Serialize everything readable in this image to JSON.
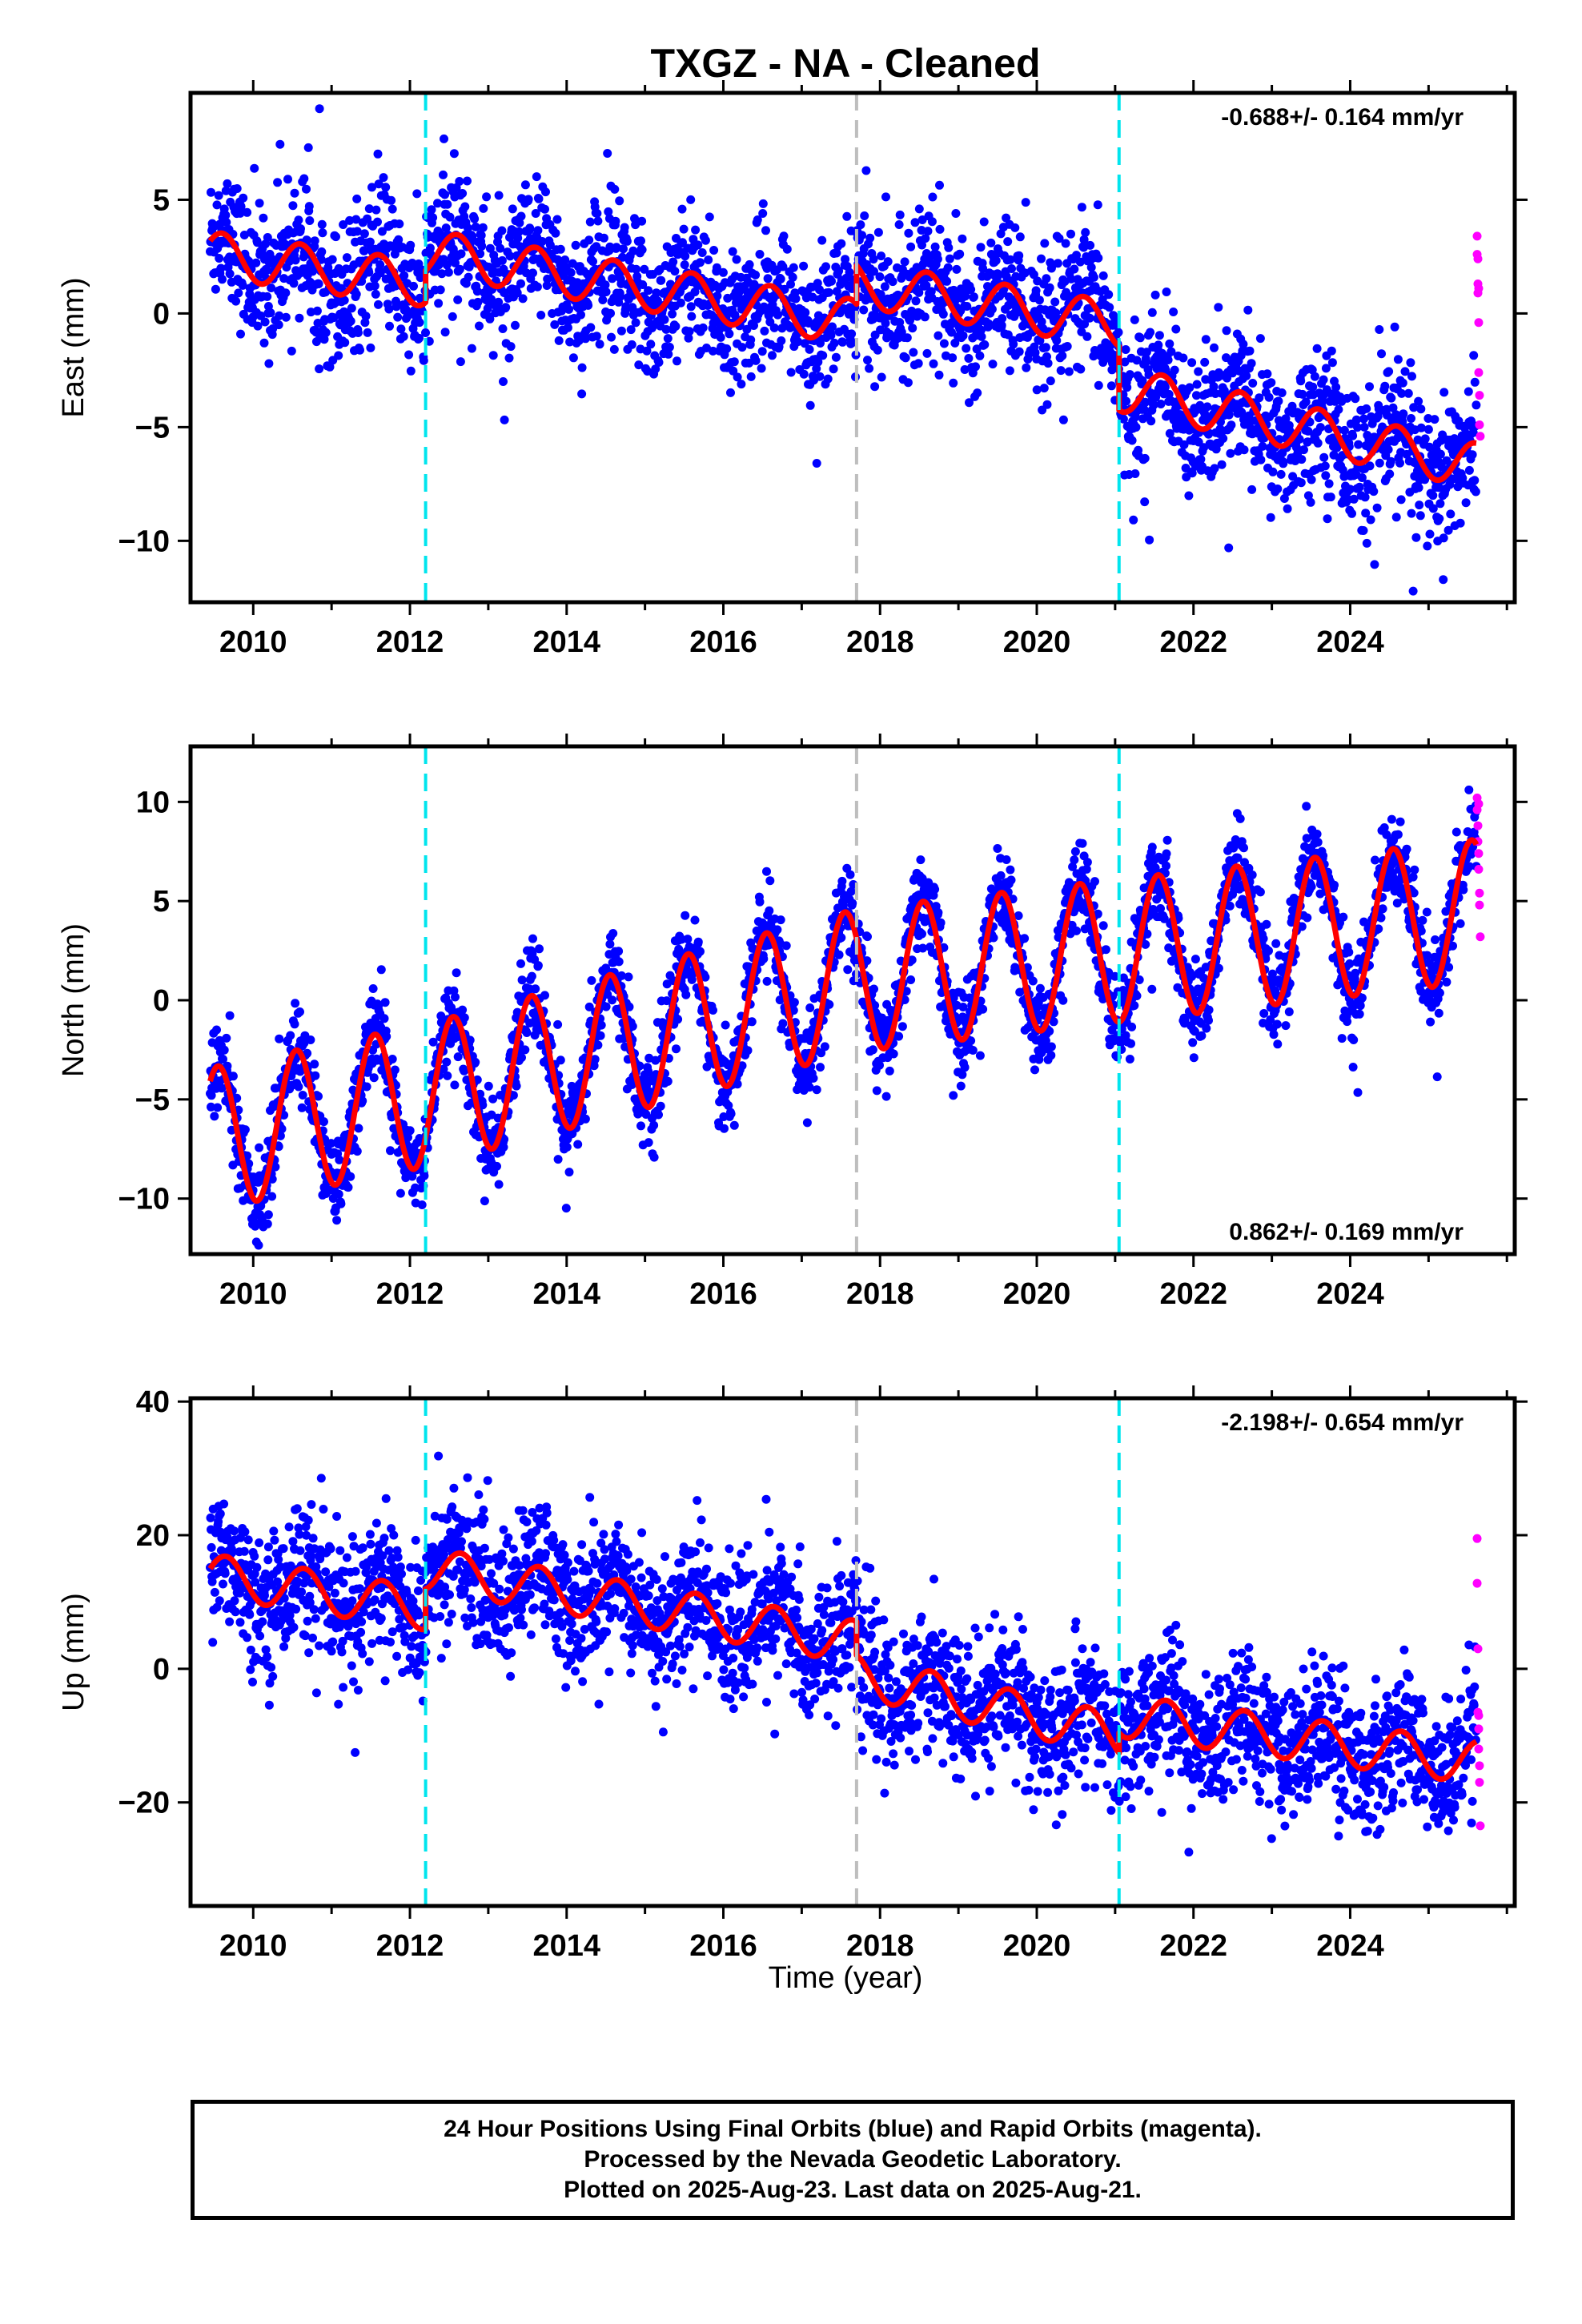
{
  "title": "TXGZ  - NA - Cleaned",
  "xlabel": "Time (year)",
  "footer": {
    "line1": "24 Hour Positions Using Final Orbits (blue) and Rapid Orbits (magenta).",
    "line2": "Processed by the Nevada Geodetic Laboratory.",
    "line3": "Plotted on 2025-Aug-23. Last data on 2025-Aug-21."
  },
  "colors": {
    "final_orbits": "#0000ff",
    "rapid_orbits": "#ff00ff",
    "model": "#ff0000",
    "equipment_change": "#00e5ee",
    "other_event": "#bebebe"
  },
  "chart_data": [
    {
      "type": "scatter",
      "ylabel": "East (mm)",
      "velocity": "-0.688+/- 0.164 mm/yr",
      "xlim": [
        2009.2,
        2026.1
      ],
      "ylim": [
        -12.7,
        9.7
      ],
      "xticks": [
        2010,
        2012,
        2014,
        2016,
        2018,
        2020,
        2022,
        2024
      ],
      "yticks": [
        5,
        0,
        -5,
        -10
      ],
      "vlines": [
        {
          "x": 2012.2,
          "type": "equipment_change"
        },
        {
          "x": 2017.7,
          "type": "other_event"
        },
        {
          "x": 2021.05,
          "type": "equipment_change"
        }
      ],
      "model": {
        "trend": [
          [
            2009.45,
            2.6
          ],
          [
            2012.2,
            1.3
          ],
          [
            2012.2,
            2.7
          ],
          [
            2017.7,
            -0.4
          ],
          [
            2017.7,
            1.3
          ],
          [
            2021.05,
            -0.5
          ],
          [
            2021.05,
            -3.3
          ],
          [
            2025.6,
            -6.7
          ]
        ],
        "seasonal_amplitude": 1.0,
        "peak_phase": 0.6
      },
      "scatter_sigma": 1.5,
      "rapid_points": [
        [
          2025.62,
          3.4
        ],
        [
          2025.62,
          2.6
        ],
        [
          2025.63,
          1.3
        ],
        [
          2025.63,
          0.9
        ],
        [
          2025.64,
          -0.4
        ],
        [
          2025.64,
          -2.6
        ],
        [
          2025.65,
          -3.6
        ],
        [
          2025.65,
          -4.9
        ],
        [
          2025.66,
          -5.4
        ],
        [
          2025.63,
          2.4
        ],
        [
          2025.64,
          1.1
        ]
      ]
    },
    {
      "type": "scatter",
      "ylabel": "North (mm)",
      "velocity": "0.862+/- 0.169 mm/yr",
      "xlim": [
        2009.2,
        2026.1
      ],
      "ylim": [
        -12.8,
        12.8
      ],
      "xticks": [
        2010,
        2012,
        2014,
        2016,
        2018,
        2020,
        2022,
        2024
      ],
      "yticks": [
        10,
        5,
        0,
        -5,
        -10
      ],
      "vlines": [
        {
          "x": 2012.2,
          "type": "equipment_change"
        },
        {
          "x": 2017.7,
          "type": "other_event"
        },
        {
          "x": 2021.05,
          "type": "equipment_change"
        }
      ],
      "model": {
        "trend": [
          [
            2009.45,
            -7.0
          ],
          [
            2012.2,
            -4.8
          ],
          [
            2017.7,
            1.0
          ],
          [
            2021.05,
            2.5
          ],
          [
            2025.6,
            4.5
          ]
        ],
        "seasonal_amplitude": 3.6,
        "peak_phase": 0.55
      },
      "scatter_sigma": 1.1,
      "rapid_points": [
        [
          2025.62,
          10.2
        ],
        [
          2025.62,
          9.6
        ],
        [
          2025.63,
          8.8
        ],
        [
          2025.63,
          8.0
        ],
        [
          2025.64,
          7.4
        ],
        [
          2025.64,
          6.6
        ],
        [
          2025.65,
          5.4
        ],
        [
          2025.65,
          4.8
        ],
        [
          2025.66,
          3.2
        ],
        [
          2025.64,
          9.9
        ]
      ]
    },
    {
      "type": "scatter",
      "ylabel": "Up (mm)",
      "velocity": "-2.198+/- 0.654 mm/yr",
      "xlim": [
        2009.2,
        2026.1
      ],
      "ylim": [
        -35.5,
        40.5
      ],
      "xticks": [
        2010,
        2012,
        2014,
        2016,
        2018,
        2020,
        2022,
        2024
      ],
      "yticks": [
        40,
        20,
        0,
        -20
      ],
      "vlines": [
        {
          "x": 2012.2,
          "type": "equipment_change"
        },
        {
          "x": 2017.7,
          "type": "other_event"
        },
        {
          "x": 2021.05,
          "type": "equipment_change"
        }
      ],
      "model": {
        "trend": [
          [
            2009.45,
            14.0
          ],
          [
            2012.2,
            9.0
          ],
          [
            2012.2,
            15.0
          ],
          [
            2017.7,
            4.0
          ],
          [
            2017.7,
            -1.0
          ],
          [
            2021.05,
            -10.0
          ],
          [
            2021.05,
            -7.0
          ],
          [
            2025.6,
            -14.0
          ]
        ],
        "seasonal_amplitude": 3.2,
        "peak_phase": 0.65
      },
      "scatter_sigma": 5.0,
      "rapid_points": [
        [
          2025.62,
          19.5
        ],
        [
          2025.62,
          12.8
        ],
        [
          2025.63,
          3.0
        ],
        [
          2025.63,
          -6.5
        ],
        [
          2025.64,
          -7.0
        ],
        [
          2025.64,
          -12.0
        ],
        [
          2025.65,
          -14.5
        ],
        [
          2025.65,
          -17.0
        ],
        [
          2025.66,
          -23.5
        ],
        [
          2025.64,
          -9.0
        ]
      ]
    }
  ]
}
